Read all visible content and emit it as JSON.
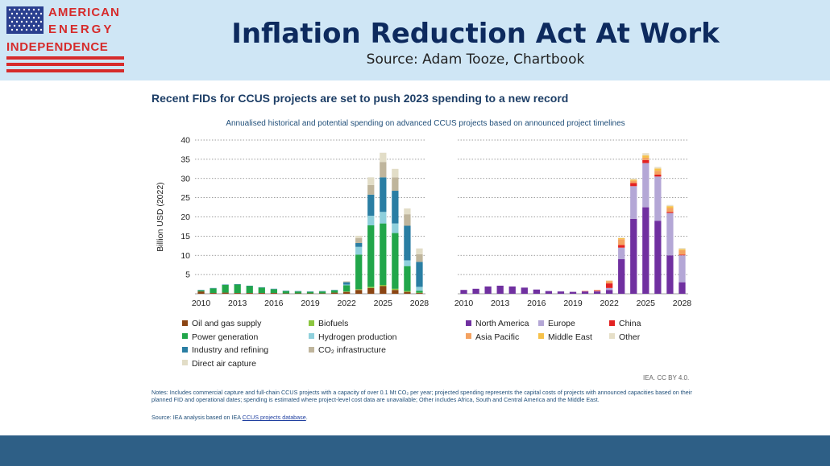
{
  "header": {
    "logo_line1": "AMERICAN",
    "logo_line2": "ENERGY",
    "logo_line3": "INDEPENDENCE",
    "title": "Inflation Reduction Act At Work",
    "subtitle": "Source: Adam Tooze, Chartbook"
  },
  "colors": {
    "header_bg": "#cfe6f5",
    "footer_bar": "#2e5f86",
    "title": "#0d2a5e",
    "brand_red": "#d62b2b",
    "flag_blue": "#2a3f8f"
  },
  "figure": {
    "title": "Recent FIDs for CCUS projects are set to push 2023 spending to a new record",
    "subtitle": "Annualised historical and potential spending on advanced CCUS projects based on announced project timelines",
    "credit": "IEA. CC BY 4.0.",
    "notes": "Notes: Includes commercial capture and full-chain CCUS projects with a capacity of over 0.1 Mt CO₂ per year; projected spending represents the capital costs of projects with announced capacities based on their planned FID and operational dates; spending is estimated where project-level cost data are unavailable; Other includes Africa, South and Central America and the Middle East.",
    "source_prefix": "Source: IEA analysis based on IEA ",
    "source_link": "CCUS projects database",
    "source_suffix": "."
  },
  "chart_data": [
    {
      "type": "bar",
      "stacked": true,
      "ylabel": "Billion USD (2022)",
      "ylim": [
        0,
        40
      ],
      "yticks": [
        5,
        10,
        15,
        20,
        25,
        30,
        35,
        40
      ],
      "grid": true,
      "x": [
        2010,
        2011,
        2012,
        2013,
        2014,
        2015,
        2016,
        2017,
        2018,
        2019,
        2020,
        2021,
        2022,
        2023,
        2024,
        2025,
        2026,
        2027,
        2028
      ],
      "xtick_labels": [
        "2010",
        "2013",
        "2016",
        "2019",
        "2022",
        "2025",
        "2028"
      ],
      "legend_position": "bottom",
      "series": [
        {
          "name": "Oil and gas supply",
          "color": "#8b4513",
          "values": [
            0.6,
            0.2,
            0.3,
            0.2,
            0.2,
            0.2,
            0.2,
            0.1,
            0.1,
            0.1,
            0.1,
            0.3,
            0.5,
            1.0,
            1.5,
            2.0,
            1.0,
            0.5,
            0.2
          ]
        },
        {
          "name": "Biofuels",
          "color": "#8cc63f",
          "values": [
            0,
            0,
            0,
            0,
            0,
            0,
            0,
            0,
            0,
            0,
            0,
            0,
            0.1,
            0.2,
            0.3,
            0.3,
            0.3,
            0.2,
            0.1
          ]
        },
        {
          "name": "Power generation",
          "color": "#21a64a",
          "values": [
            0.3,
            1.2,
            2.0,
            2.2,
            1.8,
            1.4,
            1.0,
            0.6,
            0.5,
            0.4,
            0.5,
            0.6,
            1.6,
            9.0,
            16.0,
            16.0,
            14.5,
            6.5,
            0.5
          ]
        },
        {
          "name": "Hydrogen production",
          "color": "#8fd0dc",
          "values": [
            0,
            0,
            0,
            0,
            0,
            0,
            0,
            0,
            0,
            0,
            0,
            0,
            0.2,
            2.0,
            2.5,
            3.0,
            2.5,
            1.5,
            1.0
          ]
        },
        {
          "name": "Industry and refining",
          "color": "#2a7ea3",
          "values": [
            0.1,
            0.1,
            0.1,
            0.1,
            0.1,
            0.1,
            0.1,
            0.1,
            0.1,
            0.1,
            0.1,
            0.1,
            0.6,
            1.0,
            5.5,
            9.0,
            8.5,
            9.0,
            6.5
          ]
        },
        {
          "name": "CO₂ infrastructure",
          "color": "#bfb59c",
          "values": [
            0,
            0,
            0,
            0,
            0,
            0,
            0,
            0,
            0,
            0,
            0,
            0,
            0.2,
            1.3,
            2.5,
            4.0,
            3.5,
            3.0,
            2.0
          ]
        },
        {
          "name": "Direct air capture",
          "color": "#e2ddc7",
          "values": [
            0,
            0,
            0,
            0,
            0,
            0,
            0,
            0,
            0,
            0,
            0,
            0,
            0.1,
            0.6,
            2.0,
            2.4,
            2.2,
            1.5,
            1.5
          ]
        }
      ]
    },
    {
      "type": "bar",
      "stacked": true,
      "ylim": [
        0,
        40
      ],
      "grid": true,
      "x": [
        2010,
        2011,
        2012,
        2013,
        2014,
        2015,
        2016,
        2017,
        2018,
        2019,
        2020,
        2021,
        2022,
        2023,
        2024,
        2025,
        2026,
        2027,
        2028
      ],
      "xtick_labels": [
        "2010",
        "2013",
        "2016",
        "2019",
        "2022",
        "2025",
        "2028"
      ],
      "legend_position": "bottom",
      "series": [
        {
          "name": "North America",
          "color": "#7030a0",
          "values": [
            1.0,
            1.3,
            1.9,
            2.1,
            1.9,
            1.6,
            1.1,
            0.7,
            0.6,
            0.5,
            0.6,
            0.6,
            1.0,
            9.0,
            19.5,
            22.5,
            19.0,
            10.0,
            3.0
          ]
        },
        {
          "name": "Europe",
          "color": "#b4a7d6",
          "values": [
            0,
            0,
            0,
            0,
            0,
            0,
            0,
            0,
            0,
            0,
            0,
            0.1,
            0.5,
            3.0,
            8.5,
            11.5,
            11.5,
            11.0,
            7.0
          ]
        },
        {
          "name": "China",
          "color": "#e32222",
          "values": [
            0,
            0,
            0,
            0,
            0,
            0,
            0,
            0,
            0,
            0,
            0.1,
            0.2,
            1.2,
            0.7,
            0.8,
            0.8,
            0.5,
            0.3,
            0.2
          ]
        },
        {
          "name": "Asia Pacific",
          "color": "#f4a261",
          "values": [
            0,
            0,
            0,
            0,
            0,
            0,
            0,
            0,
            0,
            0,
            0,
            0.1,
            0.6,
            1.5,
            0.6,
            0.6,
            1.0,
            1.0,
            1.1
          ]
        },
        {
          "name": "Middle East",
          "color": "#f6c14a",
          "values": [
            0,
            0,
            0,
            0,
            0,
            0,
            0,
            0,
            0,
            0,
            0,
            0,
            0.1,
            0.3,
            0.3,
            0.6,
            0.6,
            0.5,
            0.3
          ]
        },
        {
          "name": "Other",
          "color": "#e6dfc8",
          "values": [
            0,
            0,
            0,
            0,
            0,
            0,
            0,
            0,
            0,
            0,
            0,
            0,
            0.1,
            0.1,
            0.3,
            0.6,
            0.4,
            0.3,
            0.3
          ]
        }
      ]
    }
  ]
}
